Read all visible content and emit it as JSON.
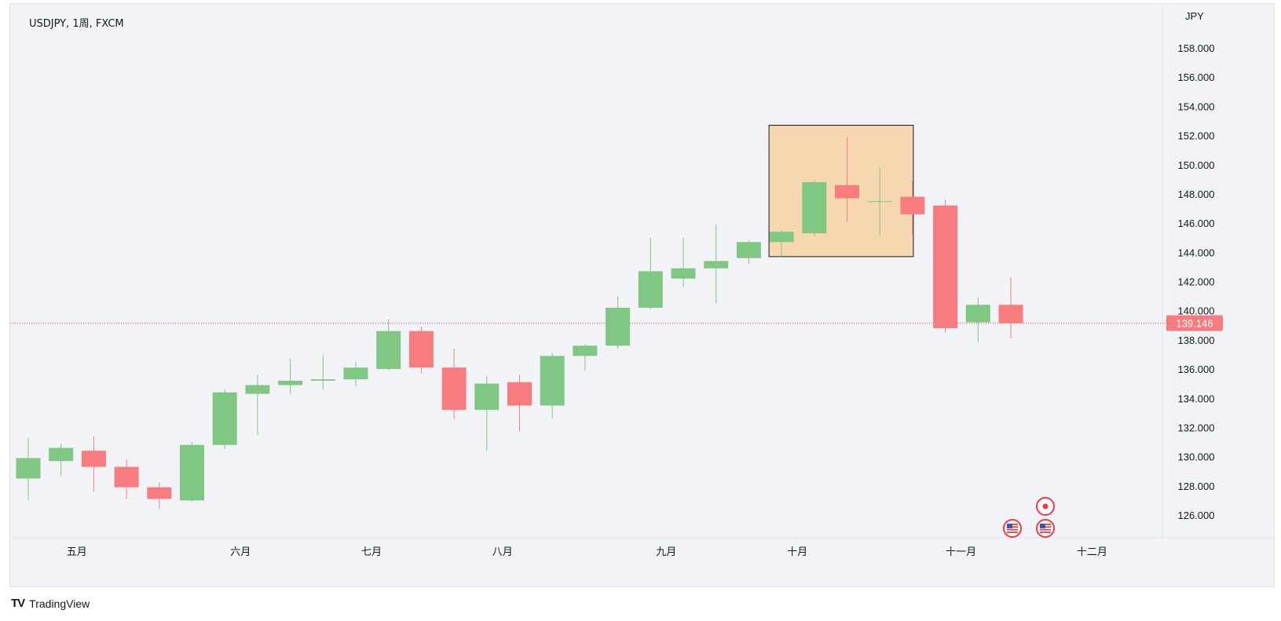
{
  "header": {
    "symbol_text": "USDJPY, 1周, FXCM"
  },
  "footer": {
    "brand_mark": "TV",
    "brand_name": "TradingView"
  },
  "colors": {
    "up": "#81c784",
    "down": "#f77c80",
    "highlight_fill": "#f5d8b0",
    "price_line": "#f23645",
    "price_label_bg": "#f77c80"
  },
  "icons": [
    "us-flag-event-icon",
    "us-flag-event-icon",
    "event-dot-icon"
  ],
  "chart_data": {
    "type": "candlestick",
    "title": "",
    "currency_label": "JPY",
    "ylim": [
      124.5,
      160
    ],
    "y_ticks": [
      "126.000",
      "128.000",
      "130.000",
      "132.000",
      "134.000",
      "136.000",
      "138.000",
      "140.000",
      "142.000",
      "144.000",
      "146.000",
      "148.000",
      "150.000",
      "152.000",
      "154.000",
      "156.000",
      "158.000"
    ],
    "y_tick_values": [
      126,
      128,
      130,
      132,
      134,
      136,
      138,
      140,
      142,
      144,
      146,
      148,
      150,
      152,
      154,
      156,
      158
    ],
    "x_month_labels": [
      {
        "label": "五月",
        "index": 1
      },
      {
        "label": "六月",
        "index": 6
      },
      {
        "label": "七月",
        "index": 10
      },
      {
        "label": "八月",
        "index": 14
      },
      {
        "label": "九月",
        "index": 19
      },
      {
        "label": "十月",
        "index": 23
      },
      {
        "label": "十一月",
        "index": 28
      },
      {
        "label": "十二月",
        "index": 32
      }
    ],
    "last_price": 139.146,
    "last_price_label": "139.146",
    "candles": [
      {
        "o": 128.5,
        "h": 131.3,
        "l": 127.0,
        "c": 129.9
      },
      {
        "o": 129.7,
        "h": 130.9,
        "l": 128.7,
        "c": 130.6
      },
      {
        "o": 130.4,
        "h": 131.4,
        "l": 127.6,
        "c": 129.3
      },
      {
        "o": 129.3,
        "h": 129.8,
        "l": 127.1,
        "c": 127.9
      },
      {
        "o": 127.9,
        "h": 128.2,
        "l": 126.4,
        "c": 127.1
      },
      {
        "o": 127.0,
        "h": 131.0,
        "l": 126.9,
        "c": 130.8
      },
      {
        "o": 130.8,
        "h": 134.6,
        "l": 130.5,
        "c": 134.4
      },
      {
        "o": 134.3,
        "h": 135.6,
        "l": 131.5,
        "c": 134.9
      },
      {
        "o": 134.9,
        "h": 136.7,
        "l": 134.3,
        "c": 135.2
      },
      {
        "o": 135.2,
        "h": 137.0,
        "l": 134.6,
        "c": 135.3
      },
      {
        "o": 135.3,
        "h": 136.5,
        "l": 134.8,
        "c": 136.1
      },
      {
        "o": 136.0,
        "h": 139.4,
        "l": 135.9,
        "c": 138.6
      },
      {
        "o": 138.6,
        "h": 138.9,
        "l": 135.7,
        "c": 136.1
      },
      {
        "o": 136.1,
        "h": 137.4,
        "l": 132.6,
        "c": 133.2
      },
      {
        "o": 133.2,
        "h": 135.5,
        "l": 130.4,
        "c": 135.0
      },
      {
        "o": 135.1,
        "h": 135.6,
        "l": 131.7,
        "c": 133.5
      },
      {
        "o": 133.5,
        "h": 137.1,
        "l": 132.6,
        "c": 136.9
      },
      {
        "o": 136.9,
        "h": 137.7,
        "l": 135.9,
        "c": 137.6
      },
      {
        "o": 137.6,
        "h": 141.0,
        "l": 137.4,
        "c": 140.2
      },
      {
        "o": 140.2,
        "h": 145.0,
        "l": 140.1,
        "c": 142.7
      },
      {
        "o": 142.2,
        "h": 145.0,
        "l": 141.6,
        "c": 142.9
      },
      {
        "o": 142.9,
        "h": 145.9,
        "l": 140.5,
        "c": 143.4
      },
      {
        "o": 143.6,
        "h": 144.8,
        "l": 143.2,
        "c": 144.7
      },
      {
        "o": 144.7,
        "h": 145.5,
        "l": 143.7,
        "c": 145.4
      },
      {
        "o": 145.3,
        "h": 148.9,
        "l": 145.1,
        "c": 148.8
      },
      {
        "o": 148.6,
        "h": 151.9,
        "l": 146.1,
        "c": 147.7
      },
      {
        "o": 147.5,
        "h": 149.8,
        "l": 145.1,
        "c": 147.5
      },
      {
        "o": 147.8,
        "h": 148.9,
        "l": 145.2,
        "c": 146.6
      },
      {
        "o": 147.2,
        "h": 147.6,
        "l": 138.5,
        "c": 138.8
      },
      {
        "o": 139.2,
        "h": 140.9,
        "l": 137.8,
        "c": 140.4
      },
      {
        "o": 140.4,
        "h": 142.3,
        "l": 138.1,
        "c": 139.146
      }
    ],
    "highlight_box": {
      "start_index": 23,
      "end_index": 26,
      "price_low": 143.7,
      "price_high": 152.7
    }
  }
}
